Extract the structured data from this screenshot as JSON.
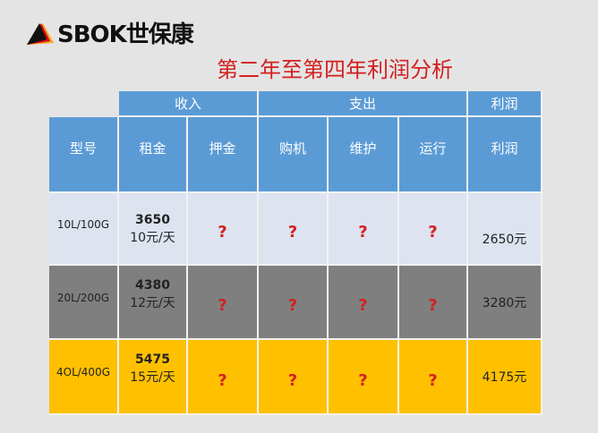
{
  "logo": {
    "text": "SBOK世保康"
  },
  "title": "第二年至第四年利润分析",
  "table": {
    "group_headers": [
      "收入",
      "支出",
      "利润"
    ],
    "columns": [
      "型号",
      "租金",
      "押金",
      "购机",
      "维护",
      "运行",
      "利润"
    ],
    "rows": [
      {
        "model": "10L/100G",
        "rent_total": "3650",
        "rent_daily": "10元/天",
        "deposit": "?",
        "purchase": "?",
        "maintenance": "?",
        "operation": "?",
        "profit": "2650元"
      },
      {
        "model": "20L/200G",
        "rent_total": "4380",
        "rent_daily": "12元/天",
        "deposit": "?",
        "purchase": "?",
        "maintenance": "?",
        "operation": "?",
        "profit": "3280元"
      },
      {
        "model": "4OL/400G",
        "rent_total": "5475",
        "rent_daily": "15元/天",
        "deposit": "?",
        "purchase": "?",
        "maintenance": "?",
        "operation": "?",
        "profit": "4175元"
      }
    ]
  },
  "colors": {
    "header": "#5b9bd5",
    "row1": "#dde3ef",
    "row2": "#7f7f7f",
    "row3": "#ffc000",
    "accent": "#d42020"
  }
}
